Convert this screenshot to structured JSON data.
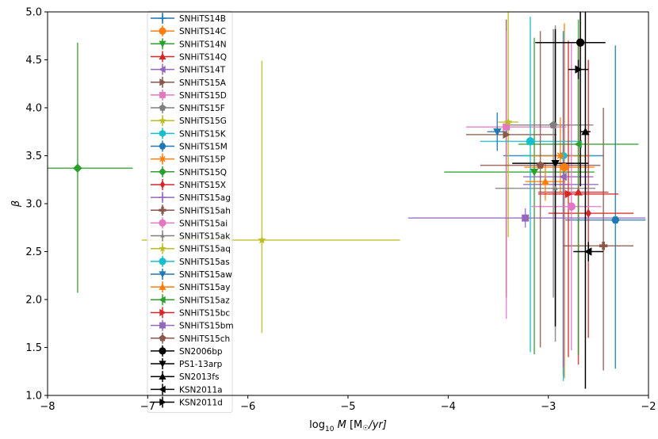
{
  "chart_data": {
    "type": "scatter",
    "xlabel_parts": {
      "pre": "log",
      "sub": "10",
      "mdot": "M",
      "post": " [M",
      "sun": "☉",
      "tail": "/yr]"
    },
    "ylabel": "β",
    "xlim": [
      -8,
      -2
    ],
    "ylim": [
      1.0,
      5.0
    ],
    "xticks": [
      -8,
      -7,
      -6,
      -5,
      -4,
      -3,
      -2
    ],
    "yticks": [
      1.0,
      1.5,
      2.0,
      2.5,
      3.0,
      3.5,
      4.0,
      4.5,
      5.0
    ],
    "xtick_labels": [
      "−8",
      "−7",
      "−6",
      "−5",
      "−4",
      "−3",
      "−2"
    ],
    "ytick_labels": [
      "1.0",
      "1.5",
      "2.0",
      "2.5",
      "3.0",
      "3.5",
      "4.0",
      "4.5",
      "5.0"
    ],
    "series": [
      {
        "name": "SNHiTS14B",
        "color": "#1f77b4",
        "marker": "plus",
        "x": -2.85,
        "y": 3.5,
        "xerr": [
          0.6,
          0.4
        ],
        "yerr": [
          2.3,
          1.3
        ]
      },
      {
        "name": "SNHiTS14C",
        "color": "#ff7f0e",
        "marker": "circle",
        "x": -2.84,
        "y": 3.38,
        "xerr": [
          0.4,
          0.3
        ],
        "yerr": [
          2.2,
          1.5
        ]
      },
      {
        "name": "SNHiTS14N",
        "color": "#2ca02c",
        "marker": "tri_down",
        "x": -3.14,
        "y": 3.33,
        "xerr": [
          0.9,
          0.6
        ],
        "yerr": [
          1.9,
          1.4
        ]
      },
      {
        "name": "SNHiTS14Q",
        "color": "#d62728",
        "marker": "tri_up",
        "x": -2.7,
        "y": 3.12,
        "xerr": [
          0.4,
          0.3
        ],
        "yerr": [
          1.8,
          1.6
        ]
      },
      {
        "name": "SNHiTS14T",
        "color": "#9467bd",
        "marker": "tri_left",
        "x": -2.85,
        "y": 3.28,
        "xerr": [
          0.4,
          0.3
        ],
        "yerr": [
          2.0,
          1.5
        ]
      },
      {
        "name": "SNHiTS15A",
        "color": "#8c564b",
        "marker": "tri_right",
        "x": -3.42,
        "y": 3.72,
        "xerr": [
          0.4,
          0.5
        ],
        "yerr": [
          1.7,
          1.2
        ]
      },
      {
        "name": "SNHiTS15D",
        "color": "#e377c2",
        "marker": "square",
        "x": -3.42,
        "y": 3.8,
        "xerr": [
          0.4,
          0.6
        ],
        "yerr": [
          2.0,
          1.0
        ]
      },
      {
        "name": "SNHiTS15F",
        "color": "#7f7f7f",
        "marker": "pentagon",
        "x": -2.95,
        "y": 3.82,
        "xerr": [
          0.5,
          0.4
        ],
        "yerr": [
          1.8,
          1.0
        ]
      },
      {
        "name": "SNHiTS15G",
        "color": "#bcbd22",
        "marker": "star",
        "x": -3.4,
        "y": 3.85,
        "xerr": [
          0.1,
          0.1
        ],
        "yerr": [
          1.2,
          1.15
        ]
      },
      {
        "name": "SNHiTS15K",
        "color": "#17becf",
        "marker": "hexagon",
        "x": -2.85,
        "y": 3.5,
        "xerr": [
          0.4,
          0.3
        ],
        "yerr": [
          2.35,
          1.3
        ]
      },
      {
        "name": "SNHiTS15M",
        "color": "#1f77b4",
        "marker": "hexagon2",
        "x": -2.33,
        "y": 2.83,
        "xerr": [
          0.5,
          0.3
        ],
        "yerr": [
          1.55,
          1.82
        ]
      },
      {
        "name": "SNHiTS15P",
        "color": "#ff7f0e",
        "marker": "asterisk",
        "x": -2.88,
        "y": 3.5,
        "xerr": [
          0.3,
          0.3
        ],
        "yerr": [
          0.4,
          0.4
        ]
      },
      {
        "name": "SNHiTS15Q",
        "color": "#2ca02c",
        "marker": "diamond",
        "x": -7.7,
        "y": 3.37,
        "xerr": [
          0.55,
          0.55
        ],
        "yerr": [
          1.3,
          1.31
        ]
      },
      {
        "name": "SNHiTS15X",
        "color": "#d62728",
        "marker": "thin_diamond",
        "x": -2.6,
        "y": 2.9,
        "xerr": [
          0.4,
          0.45
        ],
        "yerr": [
          1.3,
          1.6
        ]
      },
      {
        "name": "SNHiTS15ag",
        "color": "#9467bd",
        "marker": "plus",
        "x": -2.85,
        "y": 3.2,
        "xerr": [
          0.4,
          0.35
        ],
        "yerr": [
          1.9,
          1.5
        ]
      },
      {
        "name": "SNHiTS15ah",
        "color": "#8c564b",
        "marker": "plus_filled",
        "x": -2.45,
        "y": 2.56,
        "xerr": [
          0.4,
          0.3
        ],
        "yerr": [
          1.3,
          1.44
        ]
      },
      {
        "name": "SNHiTS15ai",
        "color": "#e377c2",
        "marker": "circle",
        "x": -2.77,
        "y": 2.97,
        "xerr": [
          0.4,
          0.3
        ],
        "yerr": [
          1.5,
          1.7
        ]
      },
      {
        "name": "SNHiTS15ak",
        "color": "#7f7f7f",
        "marker": "tri_small",
        "x": -2.93,
        "y": 3.16,
        "xerr": [
          0.6,
          0.4
        ],
        "yerr": [
          1.6,
          1.7
        ]
      },
      {
        "name": "SNHiTS15aq",
        "color": "#bcbd22",
        "marker": "star",
        "x": -5.86,
        "y": 2.62,
        "xerr": [
          1.2,
          1.38
        ],
        "yerr": [
          0.97,
          1.87
        ]
      },
      {
        "name": "SNHiTS15as",
        "color": "#17becf",
        "marker": "circle",
        "x": -3.18,
        "y": 3.65,
        "xerr": [
          0.5,
          0.5
        ],
        "yerr": [
          2.2,
          1.3
        ]
      },
      {
        "name": "SNHiTS15aw",
        "color": "#1f77b4",
        "marker": "tri_down",
        "x": -3.51,
        "y": 3.75,
        "xerr": [
          0.1,
          0.1
        ],
        "yerr": [
          0.2,
          0.2
        ]
      },
      {
        "name": "SNHiTS15ay",
        "color": "#ff7f0e",
        "marker": "tri_up",
        "x": -3.03,
        "y": 3.23,
        "xerr": [
          0.2,
          0.2
        ],
        "yerr": [
          0.2,
          0.2
        ]
      },
      {
        "name": "SNHiTS15az",
        "color": "#2ca02c",
        "marker": "tri_left",
        "x": -2.7,
        "y": 3.62,
        "xerr": [
          0.6,
          0.6
        ],
        "yerr": [
          2.2,
          1.3
        ]
      },
      {
        "name": "SNHiTS15bc",
        "color": "#d62728",
        "marker": "tri_right",
        "x": -2.8,
        "y": 3.1,
        "xerr": [
          0.3,
          0.5
        ],
        "yerr": [
          1.7,
          1.6
        ]
      },
      {
        "name": "SNHiTS15bm",
        "color": "#9467bd",
        "marker": "square",
        "x": -3.23,
        "y": 2.85,
        "xerr": [
          1.17,
          1.2
        ],
        "yerr": [
          0.1,
          0.1
        ]
      },
      {
        "name": "SNHiTS15ch",
        "color": "#8c564b",
        "marker": "pentagon",
        "x": -3.08,
        "y": 3.4,
        "xerr": [
          0.6,
          0.6
        ],
        "yerr": [
          1.9,
          1.4
        ]
      },
      {
        "name": "SN2006bp",
        "color": "#000000",
        "marker": "circle",
        "x": -2.68,
        "y": 4.68,
        "xerr": [
          0.45,
          0.25
        ],
        "yerr": [
          1.5,
          0.4
        ]
      },
      {
        "name": "PS1-13arp",
        "color": "#000000",
        "marker": "tri_down",
        "x": -2.93,
        "y": 3.42,
        "xerr": [
          0.43,
          0.33
        ],
        "yerr": [
          1.7,
          1.4
        ]
      },
      {
        "name": "SN2013fs",
        "color": "#000000",
        "marker": "tri_up",
        "x": -2.63,
        "y": 3.75,
        "xerr": [
          0.05,
          0.05
        ],
        "yerr": [
          2.68,
          1.3
        ]
      },
      {
        "name": "KSN2011a",
        "color": "#000000",
        "marker": "tri_left",
        "x": -2.6,
        "y": 2.5,
        "xerr": [
          0.15,
          0.15
        ],
        "yerr": [
          0.1,
          0.1
        ]
      },
      {
        "name": "KSN2011d",
        "color": "#000000",
        "marker": "tri_right",
        "x": -2.7,
        "y": 4.4,
        "xerr": [
          0.1,
          0.1
        ],
        "yerr": [
          0.1,
          0.1
        ]
      }
    ]
  }
}
